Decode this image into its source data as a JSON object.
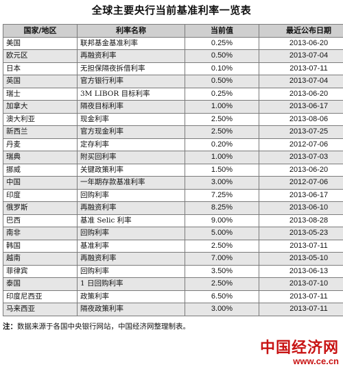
{
  "title": "全球主要央行当前基准利率一览表",
  "headers": [
    "国家/地区",
    "利率名称",
    "当前值",
    "最近公布日期"
  ],
  "rows": [
    [
      "美国",
      "联邦基金基准利率",
      "0.25%",
      "2013-06-20"
    ],
    [
      "欧元区",
      "再融资利率",
      "0.50%",
      "2013-07-04"
    ],
    [
      "日本",
      "无担保隔夜拆借利率",
      "0.10%",
      "2013-07-11"
    ],
    [
      "英国",
      "官方银行利率",
      "0.50%",
      "2013-07-04"
    ],
    [
      "瑞士",
      "3M LIBOR 目标利率",
      "0.25%",
      "2013-06-20"
    ],
    [
      "加拿大",
      "隔夜目标利率",
      "1.00%",
      "2013-06-17"
    ],
    [
      "澳大利亚",
      "现金利率",
      "2.50%",
      "2013-08-06"
    ],
    [
      "新西兰",
      "官方现金利率",
      "2.50%",
      "2013-07-25"
    ],
    [
      "丹麦",
      "定存利率",
      "0.20%",
      "2012-07-06"
    ],
    [
      "瑞典",
      "附买回利率",
      "1.00%",
      "2013-07-03"
    ],
    [
      "挪威",
      "关键政策利率",
      "1.50%",
      "2013-06-20"
    ],
    [
      "中国",
      "一年期存款基准利率",
      "3.00%",
      "2012-07-06"
    ],
    [
      "印度",
      "回购利率",
      "7.25%",
      "2013-06-17"
    ],
    [
      "俄罗斯",
      "再融资利率",
      "8.25%",
      "2013-06-10"
    ],
    [
      "巴西",
      "基准 Selic 利率",
      "9.00%",
      "2013-08-28"
    ],
    [
      "南非",
      "回购利率",
      "5.00%",
      "2013-05-23"
    ],
    [
      "韩国",
      "基准利率",
      "2.50%",
      "2013-07-11"
    ],
    [
      "越南",
      "再融资利率",
      "7.00%",
      "2013-05-10"
    ],
    [
      "菲律宾",
      "回购利率",
      "3.50%",
      "2013-06-13"
    ],
    [
      "泰国",
      "1 日回购利率",
      "2.50%",
      "2013-07-10"
    ],
    [
      "印度尼西亚",
      "政策利率",
      "6.50%",
      "2013-07-11"
    ],
    [
      "马来西亚",
      "隔夜政策利率",
      "3.00%",
      "2013-07-11"
    ]
  ],
  "note": {
    "prefix": "注：",
    "text": "数据来源于各国中央银行网站，中国经济网整理制表。"
  },
  "watermark": {
    "title": "中国经济网",
    "url": "www.ce.cn"
  }
}
